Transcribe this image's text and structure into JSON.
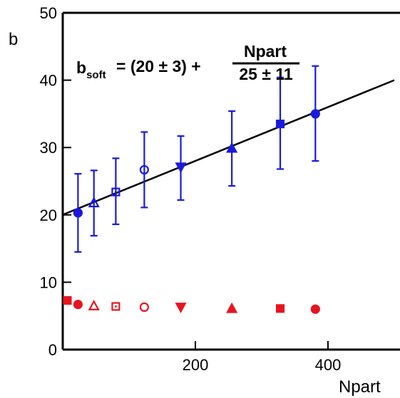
{
  "chart_data": {
    "type": "scatter",
    "ylabel": "b",
    "xlabel": "Npart",
    "xlim": [
      0,
      500
    ],
    "ylim": [
      0,
      50
    ],
    "x_ticks": [
      {
        "value": 200,
        "label": "200"
      },
      {
        "value": 400,
        "label": "400"
      }
    ],
    "y_ticks": [
      {
        "value": 0,
        "label": "0"
      },
      {
        "value": 10,
        "label": "10"
      },
      {
        "value": 20,
        "label": "20"
      },
      {
        "value": 30,
        "label": "30"
      },
      {
        "value": 40,
        "label": "40"
      },
      {
        "value": 50,
        "label": "50"
      }
    ],
    "grid": false,
    "formula": {
      "lhs": "b",
      "lhs_sub": "soft",
      "eq_rhs": "= (20 ± 3) +",
      "numerator": "Npart",
      "denominator": "25 ± 11"
    },
    "fit_line": {
      "color": "#000000",
      "points": [
        [
          2,
          20.1
        ],
        [
          500,
          40.0
        ]
      ]
    },
    "series": [
      {
        "color": "#1a1adf",
        "points": [
          {
            "x": 23,
            "y": 20.3,
            "yerr_low": 14.5,
            "yerr_high": 26.1,
            "marker": "circle-filled"
          },
          {
            "x": 47,
            "y": 21.8,
            "yerr_low": 16.9,
            "yerr_high": 26.6,
            "marker": "triangle-open"
          },
          {
            "x": 80,
            "y": 23.4,
            "yerr_low": 18.6,
            "yerr_high": 28.4,
            "marker": "square-open"
          },
          {
            "x": 123,
            "y": 26.7,
            "yerr_low": 21.1,
            "yerr_high": 32.3,
            "marker": "circle-open"
          },
          {
            "x": 178,
            "y": 27.1,
            "yerr_low": 22.2,
            "yerr_high": 31.7,
            "marker": "triangle-down-filled"
          },
          {
            "x": 255,
            "y": 29.9,
            "yerr_low": 24.3,
            "yerr_high": 35.4,
            "marker": "triangle-filled"
          },
          {
            "x": 328,
            "y": 33.5,
            "yerr_low": 26.8,
            "yerr_high": 40.4,
            "marker": "square-filled"
          },
          {
            "x": 381,
            "y": 35.0,
            "yerr_low": 28.0,
            "yerr_high": 42.1,
            "marker": "circle-filled"
          }
        ]
      },
      {
        "color": "#e8141e",
        "points": [
          {
            "x": 7,
            "y": 7.3,
            "marker": "square-filled"
          },
          {
            "x": 23,
            "y": 6.7,
            "marker": "circle-filled"
          },
          {
            "x": 47,
            "y": 6.5,
            "marker": "triangle-open"
          },
          {
            "x": 80,
            "y": 6.4,
            "marker": "square-open"
          },
          {
            "x": 123,
            "y": 6.3,
            "marker": "circle-open"
          },
          {
            "x": 178,
            "y": 6.3,
            "marker": "triangle-down-filled"
          },
          {
            "x": 255,
            "y": 6.1,
            "marker": "triangle-filled"
          },
          {
            "x": 328,
            "y": 6.1,
            "marker": "square-filled"
          },
          {
            "x": 381,
            "y": 6.0,
            "marker": "circle-filled"
          }
        ]
      }
    ]
  }
}
